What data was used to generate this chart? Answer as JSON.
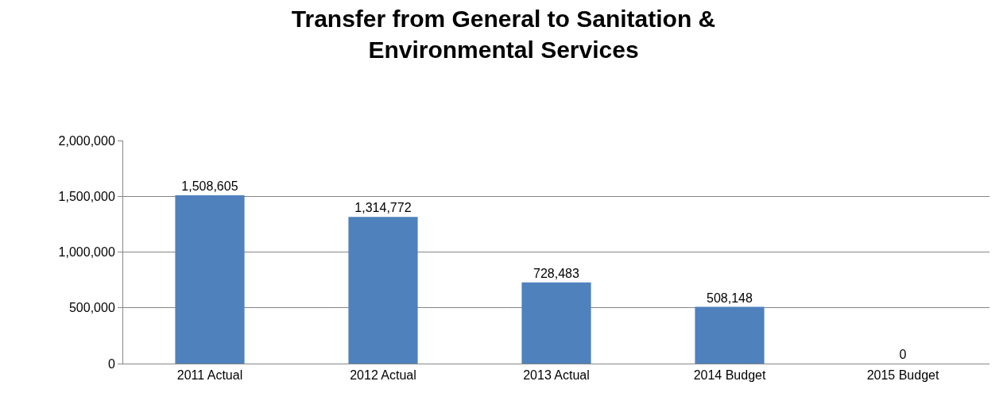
{
  "chart_data": {
    "type": "bar",
    "title": "Transfer from General to Sanitation &\nEnvironmental Services",
    "categories": [
      "2011 Actual",
      "2012 Actual",
      "2013 Actual",
      "2014 Budget",
      "2015 Budget"
    ],
    "values": [
      1508605,
      1314772,
      728483,
      508148,
      0
    ],
    "color": "#4f81bd",
    "ylim": [
      0,
      2000000
    ],
    "yticks": [
      {
        "value": 0,
        "label": "0"
      },
      {
        "value": 500000,
        "label": "500,000"
      },
      {
        "value": 1000000,
        "label": "1,000,000"
      },
      {
        "value": 1500000,
        "label": "1,500,000"
      },
      {
        "value": 2000000,
        "label": "2,000,000"
      }
    ],
    "grid": "y",
    "value_labels": [
      "1,508,605",
      "1,314,772",
      "728,483",
      "508,148",
      "0"
    ]
  }
}
